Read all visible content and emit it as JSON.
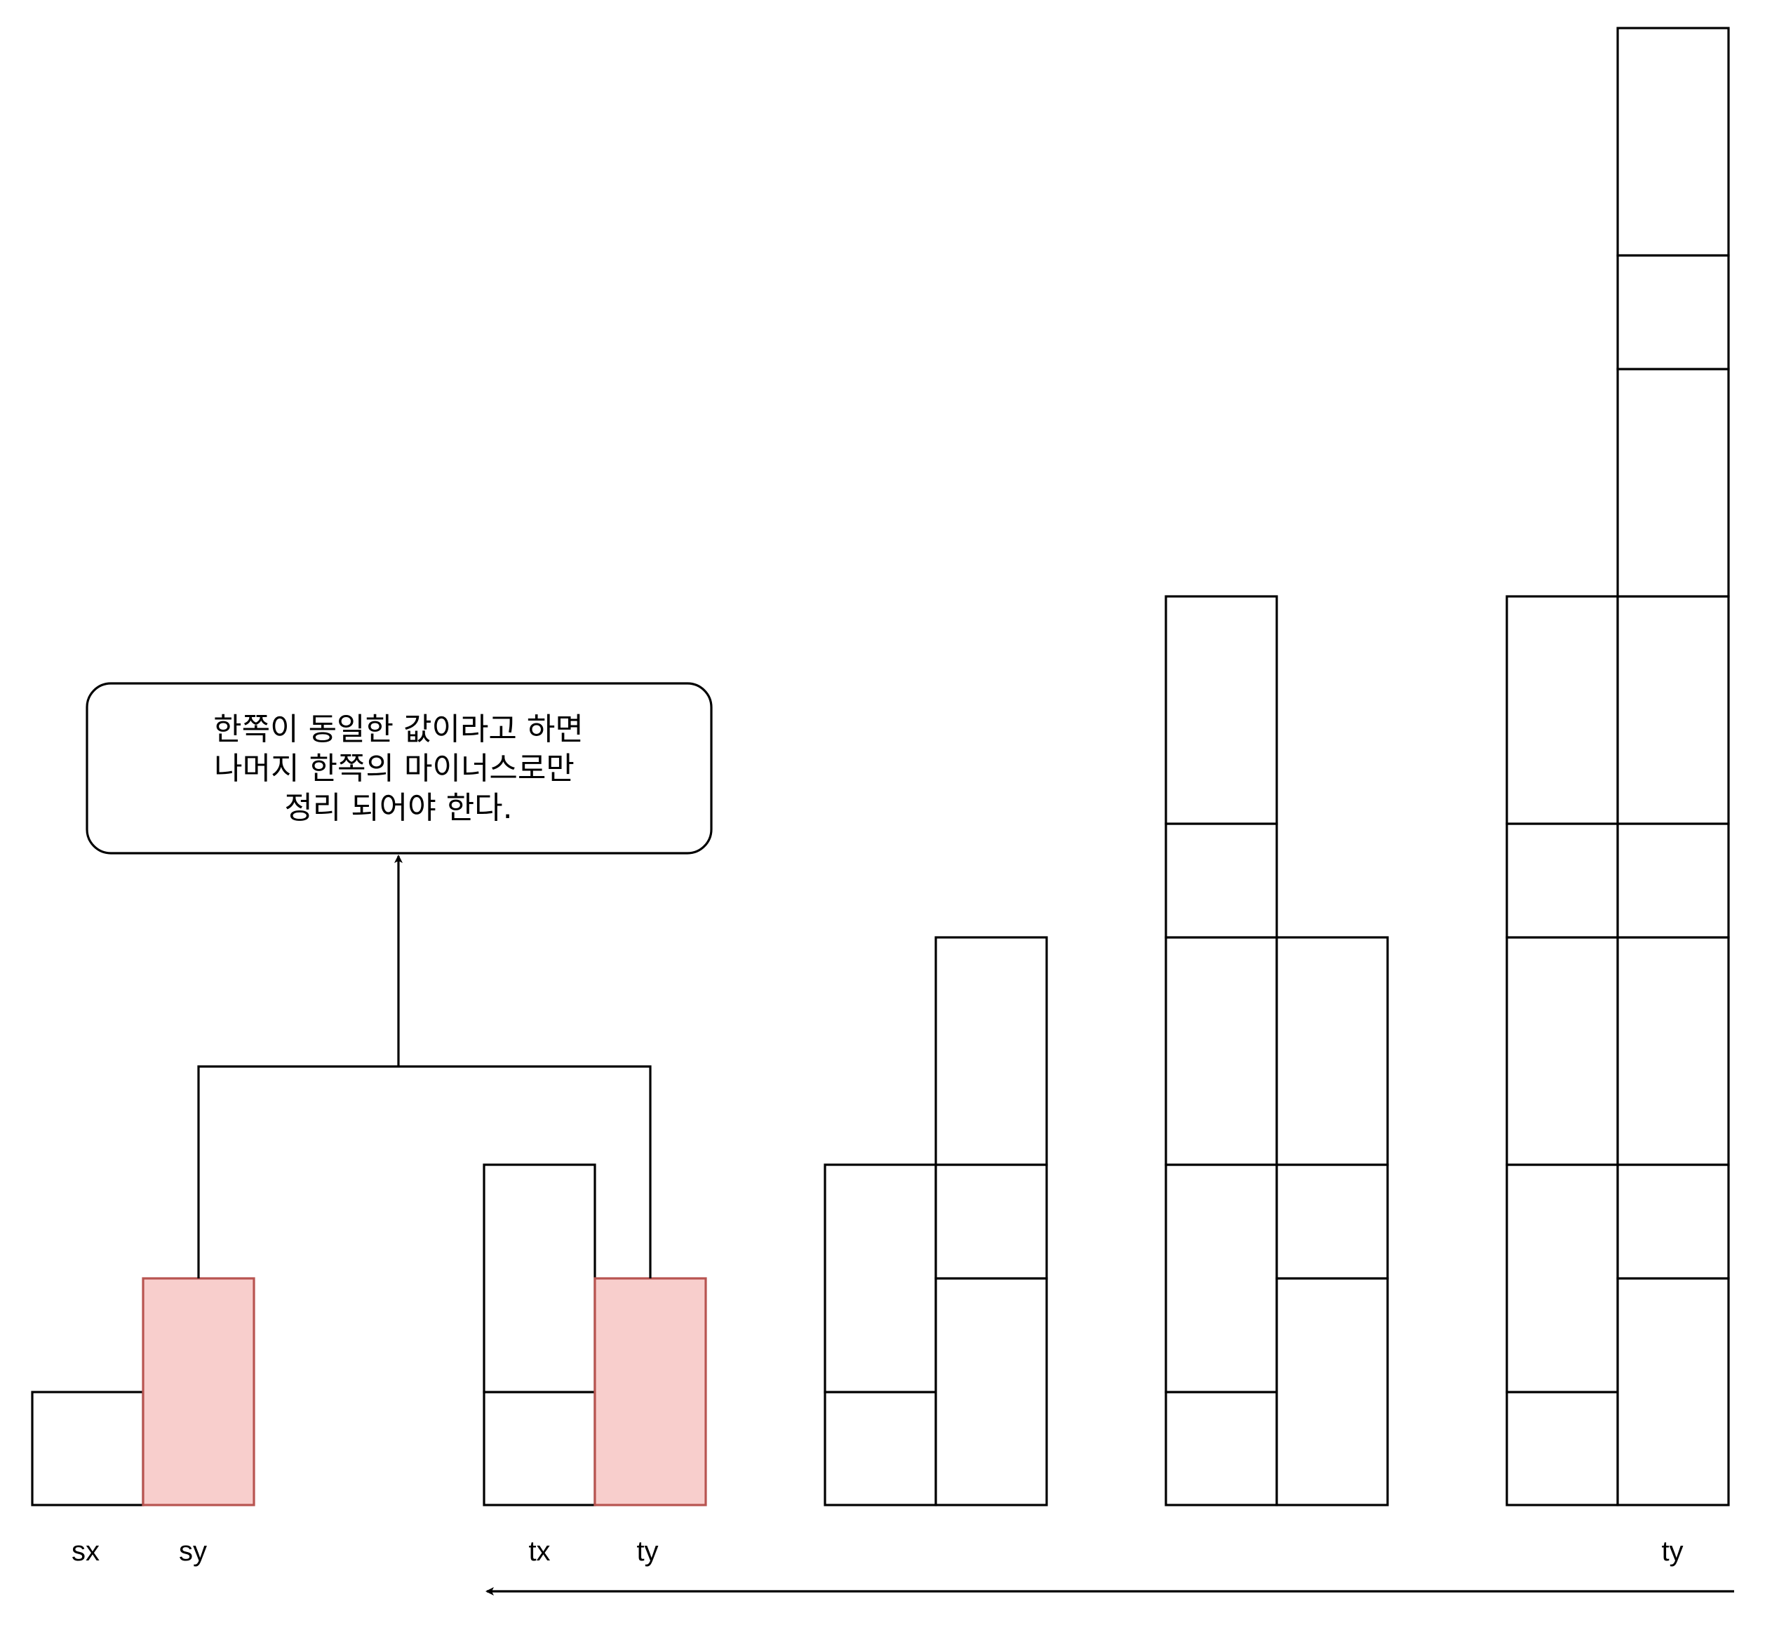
{
  "note": {
    "lines": [
      "한쪽이 동일한 값이라고 하면",
      "나머지 한쪽의 마이너스로만",
      "정리 되어야 한다."
    ]
  },
  "labels": {
    "sx": "sx",
    "sy": "sy",
    "tx": "tx",
    "ty": "ty",
    "ty_end": "ty"
  },
  "colors": {
    "highlight_fill": "#f8cecc",
    "highlight_stroke": "#b85450",
    "line": "#000000"
  }
}
